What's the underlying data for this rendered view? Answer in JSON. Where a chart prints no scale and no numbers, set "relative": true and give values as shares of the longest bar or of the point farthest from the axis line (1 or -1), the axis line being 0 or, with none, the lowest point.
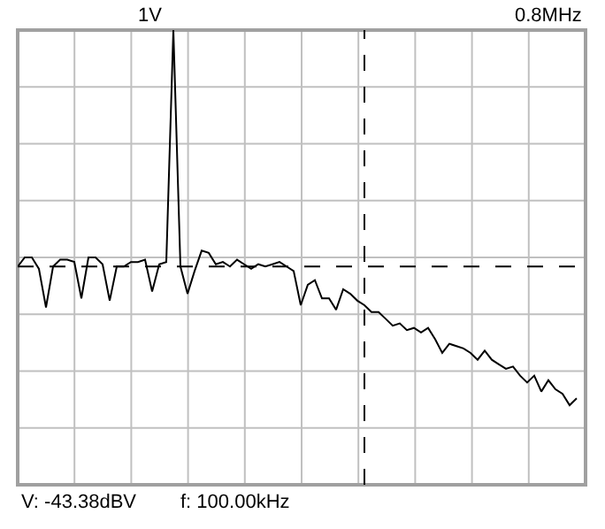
{
  "chart_data": {
    "type": "line",
    "relative": true,
    "grid": true,
    "marker": "none",
    "line_style": "solid",
    "annotations": [
      "1V",
      "0.8MHz",
      "V: -43.38dBV",
      "f: 100.00kHz"
    ],
    "categories": [
      null,
      null,
      null,
      null,
      null,
      null,
      null,
      null,
      null,
      null,
      null,
      null,
      null,
      null,
      null,
      null,
      null,
      null,
      null,
      null,
      null,
      null,
      null,
      null,
      null,
      null,
      null,
      null,
      null,
      null,
      null,
      null,
      null,
      null,
      null,
      null,
      null,
      null,
      null,
      null,
      null,
      null,
      null,
      null,
      null,
      null,
      null,
      null,
      null,
      null,
      null,
      null,
      null,
      null,
      null,
      null,
      null,
      null,
      null,
      null,
      null,
      null,
      null,
      null,
      null,
      null,
      null,
      null,
      null,
      null,
      null,
      null,
      null,
      null,
      null,
      null,
      null,
      null,
      null,
      null
    ],
    "series": [
      {
        "color": "#000000",
        "values": [
          0.48,
          0.5,
          0.5,
          0.475,
          0.39,
          0.48,
          0.495,
          0.495,
          0.49,
          0.41,
          0.5,
          0.5,
          0.485,
          0.405,
          0.48,
          0.48,
          0.49,
          0.49,
          0.495,
          0.425,
          0.485,
          0.49,
          1,
          0.48,
          0.42,
          0.47,
          0.515,
          0.51,
          0.485,
          0.49,
          0.48,
          0.495,
          0.485,
          0.475,
          0.485,
          0.48,
          0.485,
          0.49,
          0.48,
          0.47,
          0.395,
          0.44,
          0.45,
          0.41,
          0.41,
          0.385,
          0.43,
          0.42,
          0.405,
          0.395,
          0.38,
          0.38,
          0.365,
          0.35,
          0.355,
          0.34,
          0.345,
          0.335,
          0.345,
          0.32,
          0.29,
          0.31,
          0.305,
          0.3,
          0.29,
          0.275,
          0.295,
          0.275,
          0.265,
          0.255,
          0.26,
          0.24,
          0.225,
          0.24,
          0.205,
          0.23,
          0.21,
          0.2,
          0.175,
          0.19
        ]
      }
    ],
    "ref_lines": [
      {
        "axis": "y",
        "value": 0.48,
        "color": "#000000",
        "line_style": "dashed"
      }
    ]
  }
}
